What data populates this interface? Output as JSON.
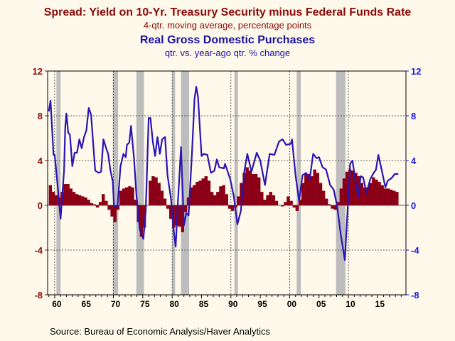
{
  "chart_data": {
    "type": "bar+line",
    "title": "Spread: Yield on 10-Yr. Treasury Security minus Federal Funds Rate",
    "subtitle": "4-qtr. moving average, percentage points",
    "title2": "Real Gross Domestic Purchases",
    "subtitle2": "qtr. vs. year-ago qtr. % change",
    "source": "Source:  Bureau of Economic Analysis/Haver Analytics",
    "colors": {
      "bars": "#8b0016",
      "line": "#2a14b4",
      "recession": "#bdbdbd",
      "left_axis": "#8b0a0a",
      "right_axis": "#1a1ae6"
    },
    "xlim": [
      1958.8,
      2019.8
    ],
    "ylim": [
      -8,
      12
    ],
    "y_ticks": [
      -8,
      -4,
      0,
      4,
      8,
      12
    ],
    "x_ticks": [
      {
        "year": 1960,
        "label": "60"
      },
      {
        "year": 1965,
        "label": "65"
      },
      {
        "year": 1970,
        "label": "70"
      },
      {
        "year": 1975,
        "label": "75"
      },
      {
        "year": 1980,
        "label": "80"
      },
      {
        "year": 1985,
        "label": "85"
      },
      {
        "year": 1990,
        "label": "90"
      },
      {
        "year": 1995,
        "label": "95"
      },
      {
        "year": 2000,
        "label": "00"
      },
      {
        "year": 2005,
        "label": "05"
      },
      {
        "year": 2010,
        "label": "10"
      },
      {
        "year": 2015,
        "label": "15"
      }
    ],
    "grid": true,
    "recessions": [
      [
        1960.3,
        1961.0
      ],
      [
        1969.9,
        1970.8
      ],
      [
        1973.9,
        1975.2
      ],
      [
        1980.0,
        1980.5
      ],
      [
        1981.5,
        1982.9
      ],
      [
        1990.6,
        1991.2
      ],
      [
        2001.2,
        2001.9
      ],
      [
        2007.9,
        2009.5
      ]
    ],
    "spread": {
      "start": 1959.0,
      "step": 0.5,
      "values": [
        1.8,
        1.2,
        0.9,
        0.7,
        1.2,
        1.9,
        1.9,
        1.5,
        1.2,
        1.0,
        0.9,
        0.8,
        0.7,
        0.5,
        0.2,
        0.1,
        -0.2,
        0.3,
        1.0,
        0.4,
        -0.4,
        -1.0,
        -1.5,
        -0.4,
        1.3,
        1.5,
        1.6,
        1.7,
        1.6,
        0.5,
        -1.5,
        -2.8,
        -2.0,
        0.0,
        2.2,
        2.6,
        2.5,
        2.0,
        1.3,
        0.6,
        -0.3,
        -1.2,
        -2.0,
        -1.8,
        -1.9,
        -2.4,
        -0.6,
        0.7,
        1.6,
        1.8,
        2.1,
        2.2,
        2.4,
        2.6,
        2.2,
        1.2,
        0.9,
        1.2,
        1.7,
        1.8,
        1.0,
        -0.3,
        -0.5,
        -0.2,
        0.8,
        2.0,
        2.9,
        3.4,
        3.1,
        2.8,
        2.8,
        2.5,
        1.2,
        0.5,
        0.9,
        1.2,
        0.9,
        0.4,
        0.0,
        -0.1,
        0.3,
        0.8,
        0.4,
        -0.2,
        -0.5,
        0.5,
        2.0,
        2.8,
        2.8,
        2.6,
        3.2,
        2.9,
        2.0,
        1.3,
        0.6,
        0.1,
        -0.3,
        -0.4,
        0.3,
        1.5,
        2.4,
        3.0,
        3.2,
        3.1,
        2.9,
        2.6,
        2.0,
        1.6,
        1.6,
        2.0,
        2.5,
        2.3,
        2.1,
        1.8,
        1.5,
        1.5,
        1.4,
        1.3,
        1.2
      ]
    },
    "gdp_purchases": [
      [
        1959.0,
        8.4
      ],
      [
        1959.3,
        9.35
      ],
      [
        1959.8,
        4.5
      ],
      [
        1960.0,
        4.5
      ],
      [
        1960.5,
        1.8
      ],
      [
        1961.0,
        -1.2
      ],
      [
        1961.6,
        3.1
      ],
      [
        1961.8,
        7.0
      ],
      [
        1962.0,
        8.2
      ],
      [
        1962.3,
        6.5
      ],
      [
        1962.6,
        6.3
      ],
      [
        1963.0,
        3.5
      ],
      [
        1963.4,
        4.7
      ],
      [
        1963.8,
        4.7
      ],
      [
        1964.2,
        5.9
      ],
      [
        1964.6,
        5.1
      ],
      [
        1965.0,
        6.1
      ],
      [
        1965.4,
        6.7
      ],
      [
        1965.8,
        8.7
      ],
      [
        1966.2,
        8.1
      ],
      [
        1966.9,
        3.1
      ],
      [
        1967.5,
        2.9
      ],
      [
        1967.9,
        3.0
      ],
      [
        1968.3,
        5.9
      ],
      [
        1968.7,
        5.2
      ],
      [
        1969.1,
        4.6
      ],
      [
        1969.5,
        3.1
      ],
      [
        1969.9,
        2.1
      ],
      [
        1970.1,
        -0.1
      ],
      [
        1970.7,
        -0.1
      ],
      [
        1971.2,
        3.5
      ],
      [
        1971.7,
        4.6
      ],
      [
        1972.1,
        4.3
      ],
      [
        1972.3,
        5.4
      ],
      [
        1972.7,
        5.6
      ],
      [
        1973.0,
        7.1
      ],
      [
        1973.5,
        4.2
      ],
      [
        1973.9,
        1.0
      ],
      [
        1974.5,
        -2.2
      ],
      [
        1975.1,
        -3.0
      ],
      [
        1975.5,
        -0.5
      ],
      [
        1976.0,
        7.8
      ],
      [
        1976.3,
        7.8
      ],
      [
        1976.7,
        5.7
      ],
      [
        1977.1,
        4.4
      ],
      [
        1977.5,
        6.1
      ],
      [
        1977.9,
        4.6
      ],
      [
        1978.3,
        5.9
      ],
      [
        1978.8,
        6.1
      ],
      [
        1979.2,
        2.7
      ],
      [
        1979.8,
        0.6
      ],
      [
        1980.2,
        -2.0
      ],
      [
        1980.6,
        -3.7
      ],
      [
        1981.0,
        0.4
      ],
      [
        1981.5,
        5.2
      ],
      [
        1982.0,
        -1.8
      ],
      [
        1982.4,
        -0.7
      ],
      [
        1982.8,
        -0.9
      ],
      [
        1983.4,
        5.0
      ],
      [
        1983.8,
        9.5
      ],
      [
        1984.1,
        10.6
      ],
      [
        1984.4,
        9.7
      ],
      [
        1985.0,
        4.4
      ],
      [
        1985.4,
        4.6
      ],
      [
        1986.0,
        4.5
      ],
      [
        1986.6,
        2.9
      ],
      [
        1987.2,
        3.1
      ],
      [
        1987.6,
        4.1
      ],
      [
        1988.0,
        3.4
      ],
      [
        1988.8,
        3.3
      ],
      [
        1989.0,
        3.7
      ],
      [
        1989.4,
        3.1
      ],
      [
        1989.9,
        2.3
      ],
      [
        1990.5,
        0.8
      ],
      [
        1991.1,
        -1.7
      ],
      [
        1991.7,
        -0.5
      ],
      [
        1992.3,
        3.1
      ],
      [
        1992.8,
        4.6
      ],
      [
        1993.5,
        3.0
      ],
      [
        1994.4,
        4.7
      ],
      [
        1995.0,
        4.0
      ],
      [
        1995.8,
        1.8
      ],
      [
        1996.6,
        4.6
      ],
      [
        1997.4,
        4.5
      ],
      [
        1998.2,
        5.7
      ],
      [
        1998.8,
        5.9
      ],
      [
        1999.4,
        5.4
      ],
      [
        2000.2,
        5.5
      ],
      [
        2000.4,
        5.9
      ],
      [
        2001.0,
        2.7
      ],
      [
        2001.6,
        0.4
      ],
      [
        2002.2,
        2.7
      ],
      [
        2002.8,
        2.9
      ],
      [
        2003.4,
        2.3
      ],
      [
        2004.0,
        4.6
      ],
      [
        2004.6,
        4.2
      ],
      [
        2005.0,
        4.3
      ],
      [
        2005.6,
        3.4
      ],
      [
        2006.2,
        3.2
      ],
      [
        2006.9,
        1.8
      ],
      [
        2007.5,
        1.4
      ],
      [
        2008.1,
        -0.1
      ],
      [
        2008.7,
        -2.6
      ],
      [
        2009.4,
        -4.9
      ],
      [
        2009.9,
        -0.1
      ],
      [
        2010.3,
        3.7
      ],
      [
        2010.7,
        4.0
      ],
      [
        2011.3,
        1.8
      ],
      [
        2011.7,
        0.8
      ],
      [
        2012.1,
        2.6
      ],
      [
        2012.5,
        2.5
      ],
      [
        2013.1,
        1.1
      ],
      [
        2013.7,
        2.3
      ],
      [
        2014.2,
        2.8
      ],
      [
        2014.7,
        3.2
      ],
      [
        2015.1,
        4.5
      ],
      [
        2015.7,
        3.1
      ],
      [
        2016.3,
        1.6
      ],
      [
        2016.7,
        2.2
      ],
      [
        2017.3,
        2.4
      ],
      [
        2017.9,
        2.8
      ],
      [
        2018.5,
        2.8
      ]
    ]
  }
}
